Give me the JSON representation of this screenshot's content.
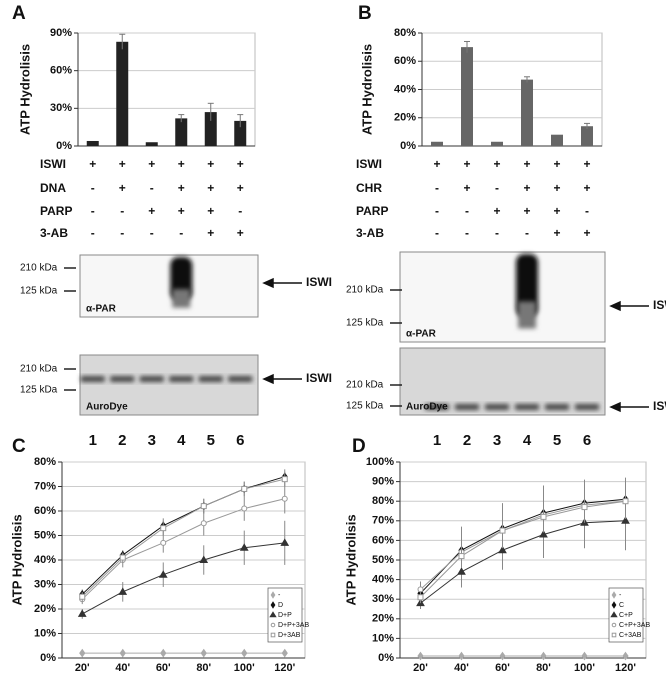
{
  "panel_labels": [
    "A",
    "B",
    "C",
    "D"
  ],
  "chart_data": [
    {
      "type": "bar",
      "y_label": "ATP Hydrolisis",
      "color": "#222222",
      "grid": true,
      "categories": [
        null,
        null,
        null,
        null,
        null,
        null
      ],
      "values": [
        4,
        83,
        3,
        22,
        27,
        20
      ],
      "errors": [
        0,
        6,
        0,
        3,
        7,
        5
      ],
      "ylim": [
        0,
        90
      ],
      "yticks": [
        {
          "value": 0,
          "label": "0%"
        },
        {
          "value": 30,
          "label": "30%"
        },
        {
          "value": 60,
          "label": "60%"
        },
        {
          "value": 90,
          "label": "90%"
        }
      ]
    },
    {
      "type": "bar",
      "y_label": "ATP Hydrolisis",
      "color": "#666666",
      "grid": true,
      "categories": [
        null,
        null,
        null,
        null,
        null,
        null
      ],
      "values": [
        3,
        70,
        3,
        47,
        8,
        14
      ],
      "errors": [
        0,
        4,
        0,
        2,
        0,
        2
      ],
      "ylim": [
        0,
        80
      ],
      "yticks": [
        {
          "value": 0,
          "label": "0%"
        },
        {
          "value": 20,
          "label": "20%"
        },
        {
          "value": 40,
          "label": "40%"
        },
        {
          "value": 60,
          "label": "60%"
        },
        {
          "value": 80,
          "label": "80%"
        }
      ]
    },
    {
      "type": "line",
      "y_label": "ATP Hydrolisis",
      "grid": true,
      "legend": "lower right",
      "x": [
        "20'",
        "40'",
        "60'",
        "80'",
        "100'",
        "120'"
      ],
      "series": [
        {
          "name": "-",
          "color": "#aaaaaa",
          "marker": "diamond",
          "values": [
            2,
            2,
            2,
            2,
            2,
            2
          ],
          "errors": [
            0,
            0,
            0,
            0,
            0,
            0
          ]
        },
        {
          "name": "D",
          "color": "#111111",
          "marker": "diamond",
          "values": [
            26,
            42,
            54,
            62,
            69,
            74
          ],
          "errors": [
            2,
            2,
            3,
            3,
            3,
            3
          ]
        },
        {
          "name": "D+P",
          "color": "#333333",
          "marker": "triangle",
          "values": [
            18,
            27,
            34,
            40,
            45,
            47
          ],
          "errors": [
            2,
            4,
            5,
            6,
            7,
            9
          ]
        },
        {
          "name": "D+P+3AB",
          "color": "#999999",
          "marker": "circle",
          "values": [
            24,
            40,
            47,
            55,
            61,
            65
          ],
          "errors": [
            2,
            3,
            4,
            5,
            5,
            6
          ]
        },
        {
          "name": "D+3AB",
          "color": "#999999",
          "marker": "square",
          "values": [
            25,
            41,
            53,
            62,
            69,
            73
          ],
          "errors": [
            2,
            2,
            3,
            3,
            3,
            3
          ]
        }
      ],
      "ylim": [
        0,
        80
      ],
      "yticks": [
        {
          "value": 0,
          "label": "0%"
        },
        {
          "value": 10,
          "label": "10%"
        },
        {
          "value": 20,
          "label": "20%"
        },
        {
          "value": 30,
          "label": "30%"
        },
        {
          "value": 40,
          "label": "40%"
        },
        {
          "value": 50,
          "label": "50%"
        },
        {
          "value": 60,
          "label": "60%"
        },
        {
          "value": 70,
          "label": "70%"
        },
        {
          "value": 80,
          "label": "80%"
        }
      ]
    },
    {
      "type": "line",
      "y_label": "ATP Hydrolisis",
      "grid": true,
      "legend": "lower right",
      "x": [
        "20'",
        "40'",
        "60'",
        "80'",
        "100'",
        "120'"
      ],
      "series": [
        {
          "name": "-",
          "color": "#aaaaaa",
          "marker": "diamond",
          "values": [
            1,
            1,
            1,
            1,
            1,
            1
          ],
          "errors": [
            0,
            0,
            0,
            0,
            0,
            0
          ]
        },
        {
          "name": "C",
          "color": "#111111",
          "marker": "diamond",
          "values": [
            33,
            55,
            66,
            74,
            79,
            81
          ],
          "errors": [
            5,
            12,
            13,
            14,
            12,
            11
          ]
        },
        {
          "name": "C+P",
          "color": "#333333",
          "marker": "triangle",
          "values": [
            28,
            44,
            55,
            63,
            69,
            70
          ],
          "errors": [
            3,
            8,
            10,
            12,
            13,
            15
          ]
        },
        {
          "name": "C+P+3AB",
          "color": "#999999",
          "marker": "circle",
          "values": [
            35,
            54,
            65,
            73,
            78,
            80
          ],
          "errors": [
            4,
            8,
            9,
            9,
            9,
            9
          ]
        },
        {
          "name": "C+3AB",
          "color": "#999999",
          "marker": "square",
          "values": [
            31,
            52,
            65,
            72,
            77,
            80
          ],
          "errors": [
            3,
            6,
            7,
            7,
            7,
            7
          ]
        }
      ],
      "ylim": [
        0,
        100
      ],
      "yticks": [
        {
          "value": 0,
          "label": "0%"
        },
        {
          "value": 10,
          "label": "10%"
        },
        {
          "value": 20,
          "label": "20%"
        },
        {
          "value": 30,
          "label": "30%"
        },
        {
          "value": 40,
          "label": "40%"
        },
        {
          "value": 50,
          "label": "50%"
        },
        {
          "value": 60,
          "label": "60%"
        },
        {
          "value": 70,
          "label": "70%"
        },
        {
          "value": 80,
          "label": "80%"
        },
        {
          "value": 90,
          "label": "90%"
        },
        {
          "value": 100,
          "label": "100%"
        }
      ]
    }
  ],
  "conditions": [
    {
      "rows": [
        {
          "name": "ISWI",
          "signs": [
            "+",
            "+",
            "+",
            "+",
            "+",
            "+"
          ]
        },
        {
          "name": "DNA",
          "signs": [
            "-",
            "+",
            "-",
            "+",
            "+",
            "+"
          ]
        },
        {
          "name": "PARP",
          "signs": [
            "-",
            "-",
            "+",
            "+",
            "+",
            "-"
          ]
        },
        {
          "name": "3-AB",
          "signs": [
            "-",
            "-",
            "-",
            "-",
            "+",
            "+"
          ]
        }
      ]
    },
    {
      "rows": [
        {
          "name": "ISWI",
          "signs": [
            "+",
            "+",
            "+",
            "+",
            "+",
            "+"
          ]
        },
        {
          "name": "CHR",
          "signs": [
            "-",
            "+",
            "-",
            "+",
            "+",
            "+"
          ]
        },
        {
          "name": "PARP",
          "signs": [
            "-",
            "-",
            "+",
            "+",
            "+",
            "-"
          ]
        },
        {
          "name": "3-AB",
          "signs": [
            "-",
            "-",
            "-",
            "-",
            "+",
            "+"
          ]
        }
      ]
    }
  ],
  "blots": [
    {
      "top": {
        "markers": [
          "210 kDa",
          "125 kDa"
        ],
        "stain": "α-PAR",
        "target": "ISWI"
      },
      "bottom": {
        "markers": [
          "210 kDa",
          "125 kDa"
        ],
        "stain": "AuroDye",
        "target": "ISWI"
      },
      "lanes": [
        "1",
        "2",
        "3",
        "4",
        "5",
        "6"
      ]
    },
    {
      "top": {
        "markers": [
          "210 kDa",
          "125 kDa"
        ],
        "stain": "α-PAR",
        "target": "ISWI"
      },
      "bottom": {
        "markers": [
          "210 kDa",
          "125 kDa"
        ],
        "stain": "AuroDye",
        "target": "ISWI"
      },
      "lanes": [
        "1",
        "2",
        "3",
        "4",
        "5",
        "6"
      ]
    }
  ]
}
